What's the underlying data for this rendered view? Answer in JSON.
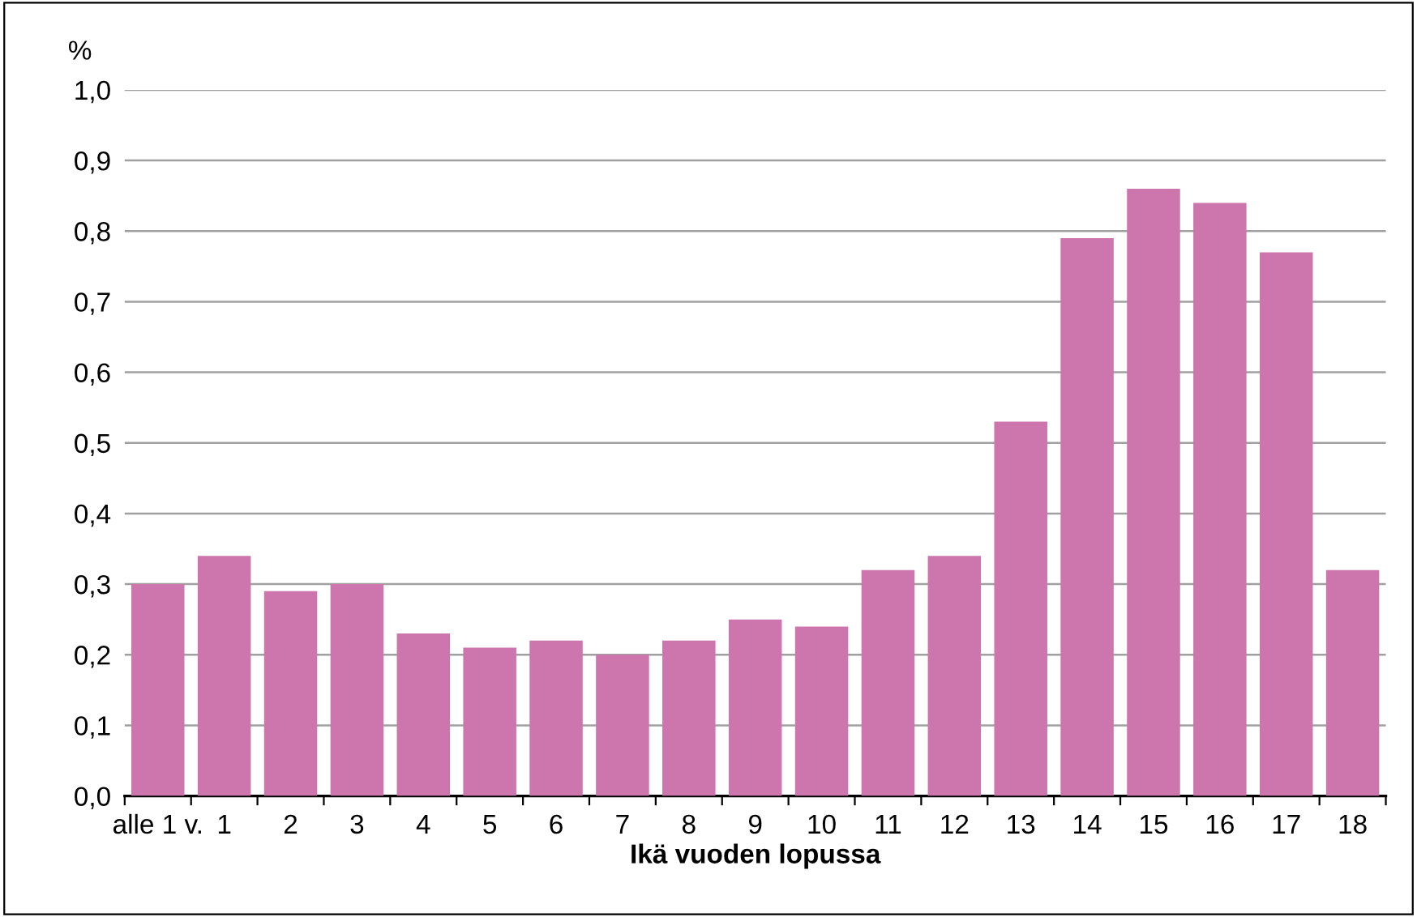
{
  "chart_data": {
    "type": "bar",
    "ylabel": "%",
    "xlabel": "Ikä vuoden lopussa",
    "categories": [
      "alle 1 v.",
      "1",
      "2",
      "3",
      "4",
      "5",
      "6",
      "7",
      "8",
      "9",
      "10",
      "11",
      "12",
      "13",
      "14",
      "15",
      "16",
      "17",
      "18"
    ],
    "values": [
      0.3,
      0.34,
      0.29,
      0.3,
      0.23,
      0.21,
      0.22,
      0.2,
      0.22,
      0.25,
      0.24,
      0.32,
      0.34,
      0.53,
      0.79,
      0.86,
      0.84,
      0.77,
      0.32
    ],
    "color": "#cc76ad",
    "ylim": [
      0,
      1.0
    ],
    "yticks": [
      {
        "value": 0,
        "label": "0,0"
      },
      {
        "value": 0.1,
        "label": "0,1"
      },
      {
        "value": 0.2,
        "label": "0,2"
      },
      {
        "value": 0.3,
        "label": "0,3"
      },
      {
        "value": 0.4,
        "label": "0,4"
      },
      {
        "value": 0.5,
        "label": "0,5"
      },
      {
        "value": 0.6,
        "label": "0,6"
      },
      {
        "value": 0.7,
        "label": "0,7"
      },
      {
        "value": 0.8,
        "label": "0,8"
      },
      {
        "value": 0.9,
        "label": "0,9"
      },
      {
        "value": 1.0,
        "label": "1,0"
      }
    ],
    "grid": "y"
  }
}
